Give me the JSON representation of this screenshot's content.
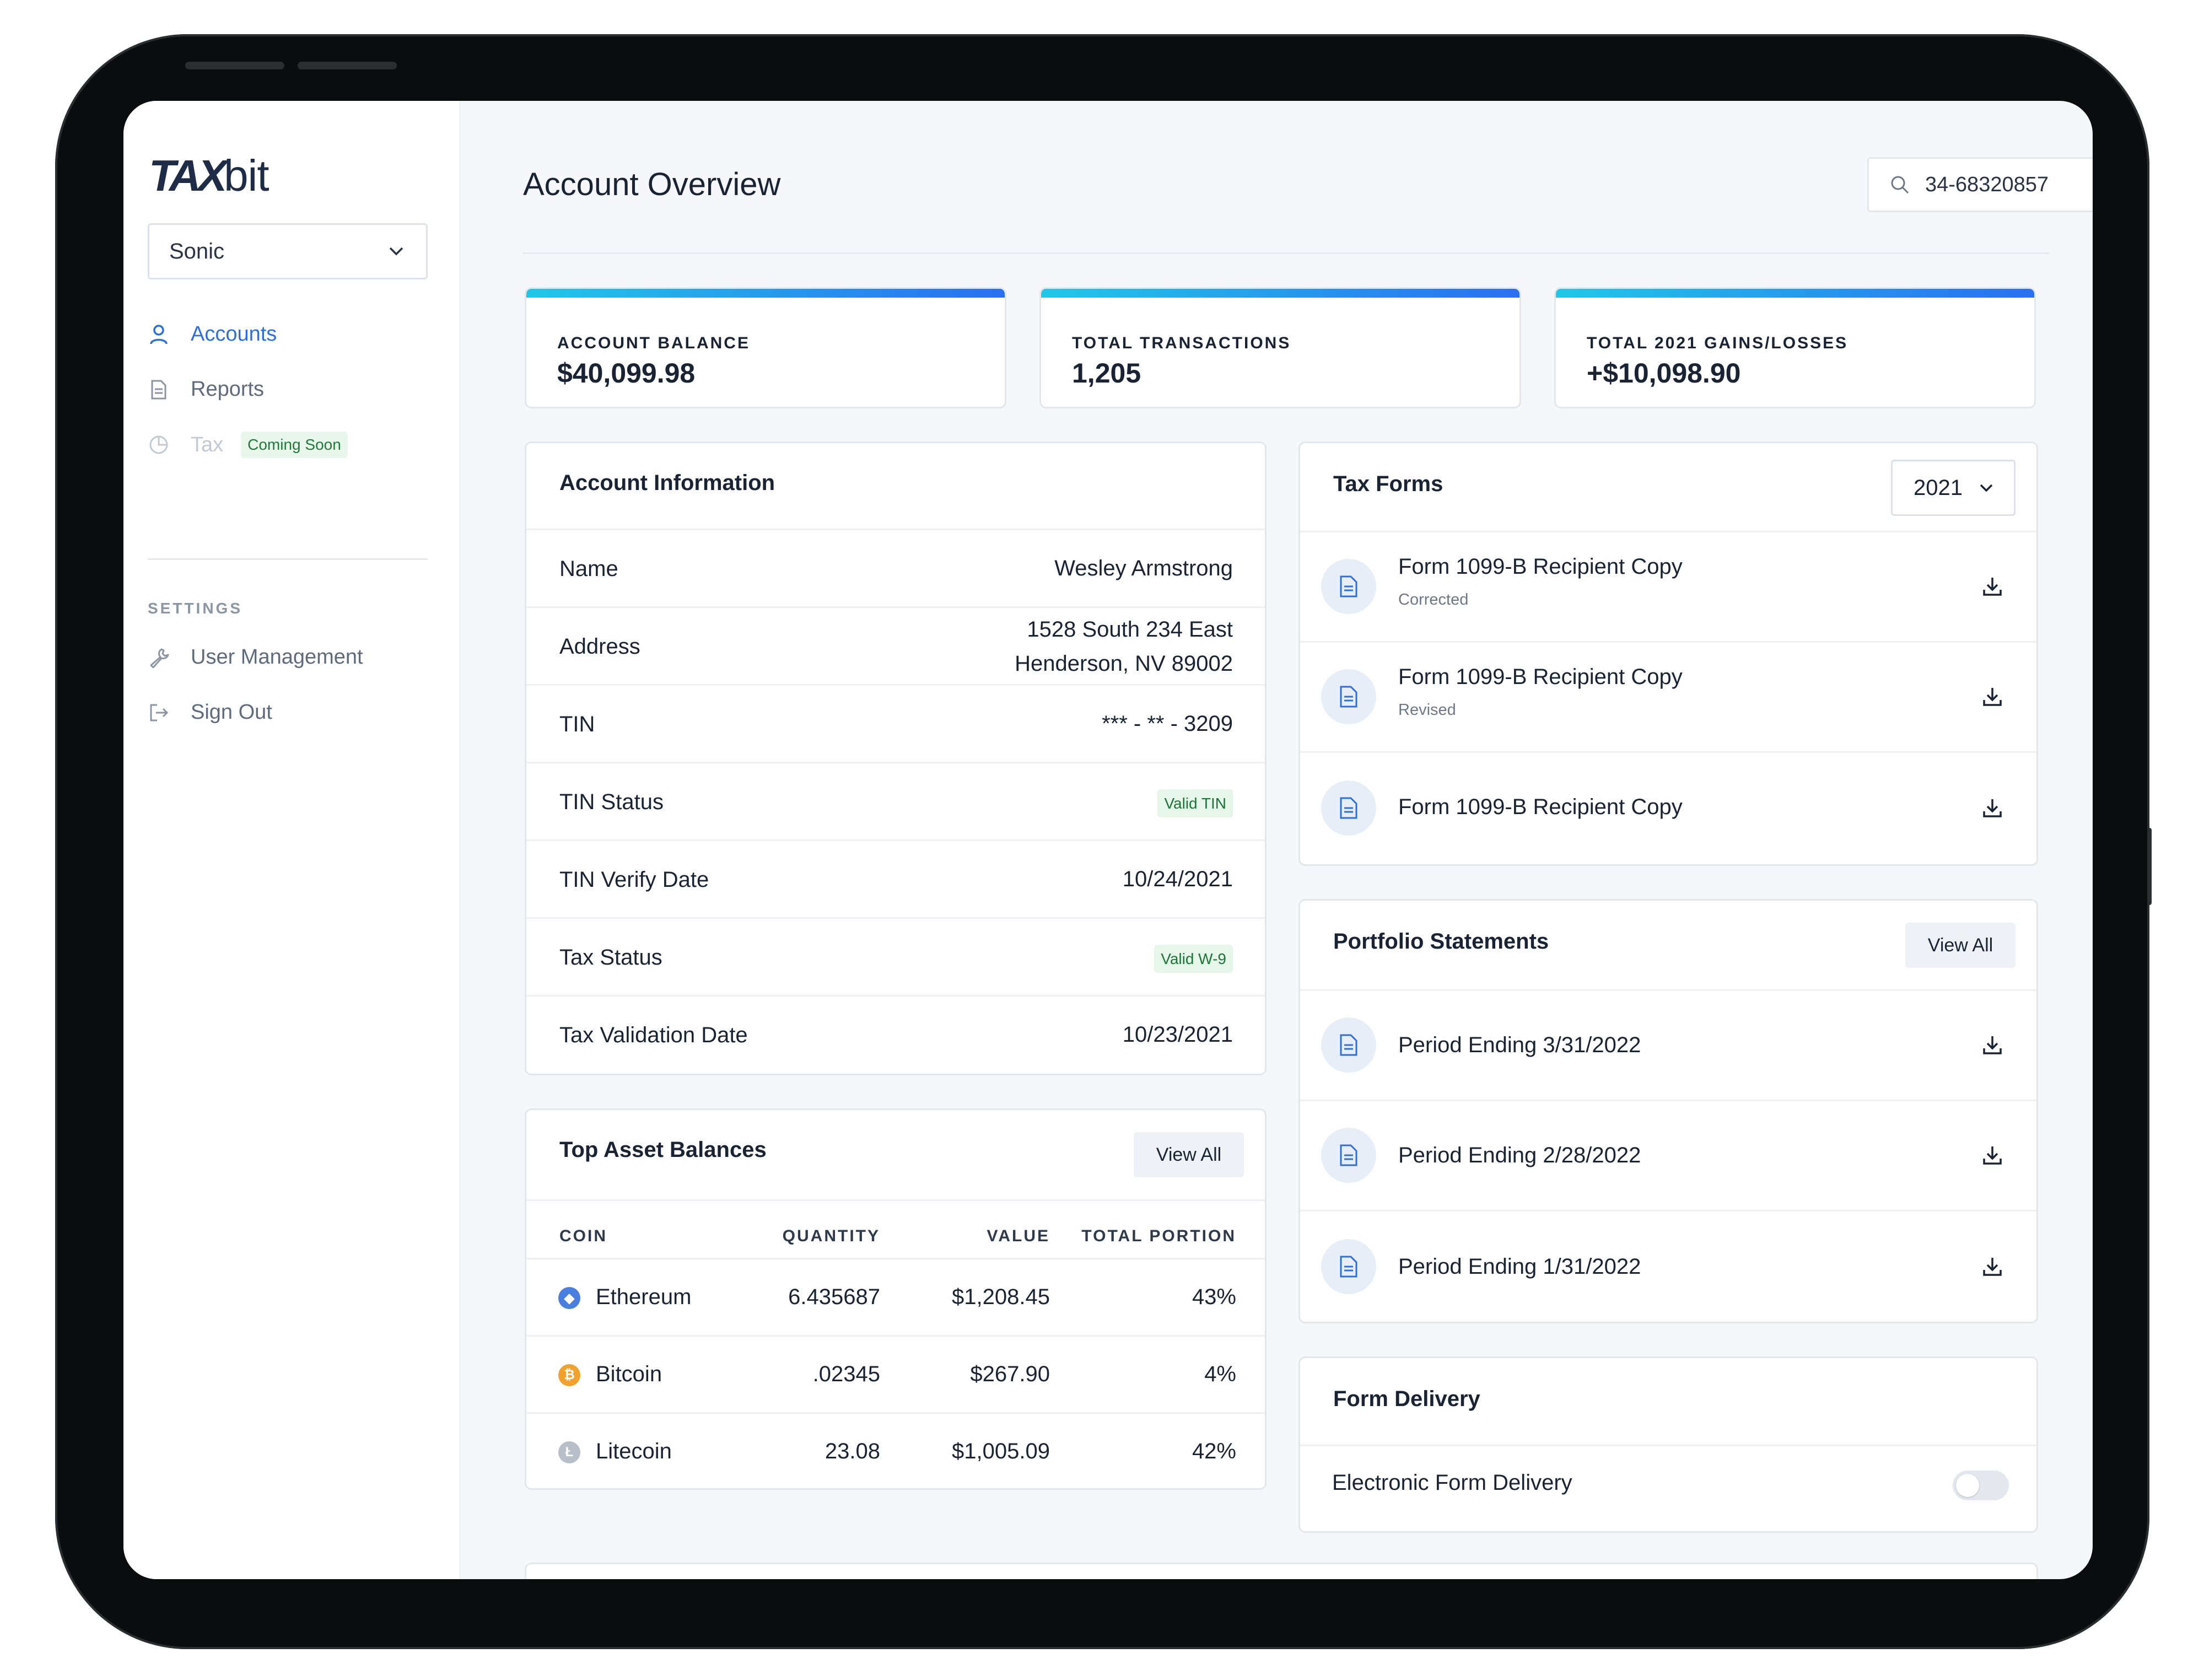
{
  "brand": {
    "logo_bold": "TAX",
    "logo_light": "bit"
  },
  "sidebar": {
    "org_select": "Sonic",
    "nav": [
      {
        "label": "Accounts",
        "icon": "user-icon"
      },
      {
        "label": "Reports",
        "icon": "document-icon"
      },
      {
        "label": "Tax",
        "icon": "pie-chart-icon",
        "badge": "Coming Soon"
      }
    ],
    "settings_label": "SETTINGS",
    "settings": [
      {
        "label": "User Management",
        "icon": "wrench-icon"
      },
      {
        "label": "Sign Out",
        "icon": "sign-out-icon"
      }
    ]
  },
  "header": {
    "title": "Account Overview",
    "search_value": "34-68320857"
  },
  "stats": [
    {
      "label": "ACCOUNT BALANCE",
      "value": "$40,099.98"
    },
    {
      "label": "TOTAL TRANSACTIONS",
      "value": "1,205"
    },
    {
      "label": "TOTAL 2021 GAINS/LOSSES",
      "value": "+$10,098.90"
    }
  ],
  "account_info": {
    "title": "Account Information",
    "rows": [
      {
        "key": "Name",
        "value": "Wesley Armstrong"
      },
      {
        "key": "Address",
        "value_line1": "1528 South 234 East",
        "value_line2": "Henderson, NV 89002"
      },
      {
        "key": "TIN",
        "value": "*** - ** - 3209"
      },
      {
        "key": "TIN Status",
        "badge": "Valid TIN"
      },
      {
        "key": "TIN Verify Date",
        "value": "10/24/2021"
      },
      {
        "key": "Tax Status",
        "badge": "Valid W-9"
      },
      {
        "key": "Tax Validation Date",
        "value": "10/23/2021"
      }
    ]
  },
  "top_assets": {
    "title": "Top Asset Balances",
    "view_all": "View All",
    "columns": [
      "COIN",
      "QUANTITY",
      "VALUE",
      "TOTAL PORTION"
    ],
    "rows": [
      {
        "coin": "Ethereum",
        "quantity": "6.435687",
        "value": "$1,208.45",
        "portion": "43%",
        "icon_color": "#4a7fe0"
      },
      {
        "coin": "Bitcoin",
        "quantity": ".02345",
        "value": "$267.90",
        "portion": "4%",
        "icon_color": "#f2a12c"
      },
      {
        "coin": "Litecoin",
        "quantity": "23.08",
        "value": "$1,005.09",
        "portion": "42%",
        "icon_color": "#b9bfc8"
      }
    ]
  },
  "tax_forms": {
    "title": "Tax Forms",
    "year": "2021",
    "items": [
      {
        "title": "Form 1099-B Recipient Copy",
        "sub": "Corrected"
      },
      {
        "title": "Form 1099-B Recipient Copy",
        "sub": "Revised"
      },
      {
        "title": "Form 1099-B Recipient Copy",
        "sub": ""
      }
    ]
  },
  "portfolio": {
    "title": "Portfolio Statements",
    "view_all": "View All",
    "items": [
      {
        "title": "Period Ending 3/31/2022"
      },
      {
        "title": "Period Ending 2/28/2022"
      },
      {
        "title": "Period Ending 1/31/2022"
      }
    ]
  },
  "form_delivery": {
    "title": "Form Delivery",
    "toggle_label": "Electronic Form Delivery",
    "toggle_on": false
  },
  "colors": {
    "accent": "#2f6fd8",
    "gradient_start": "#22c7e8",
    "gradient_end": "#2a6ff0",
    "success_bg": "#e6f6ea",
    "success_text": "#1d7438"
  }
}
